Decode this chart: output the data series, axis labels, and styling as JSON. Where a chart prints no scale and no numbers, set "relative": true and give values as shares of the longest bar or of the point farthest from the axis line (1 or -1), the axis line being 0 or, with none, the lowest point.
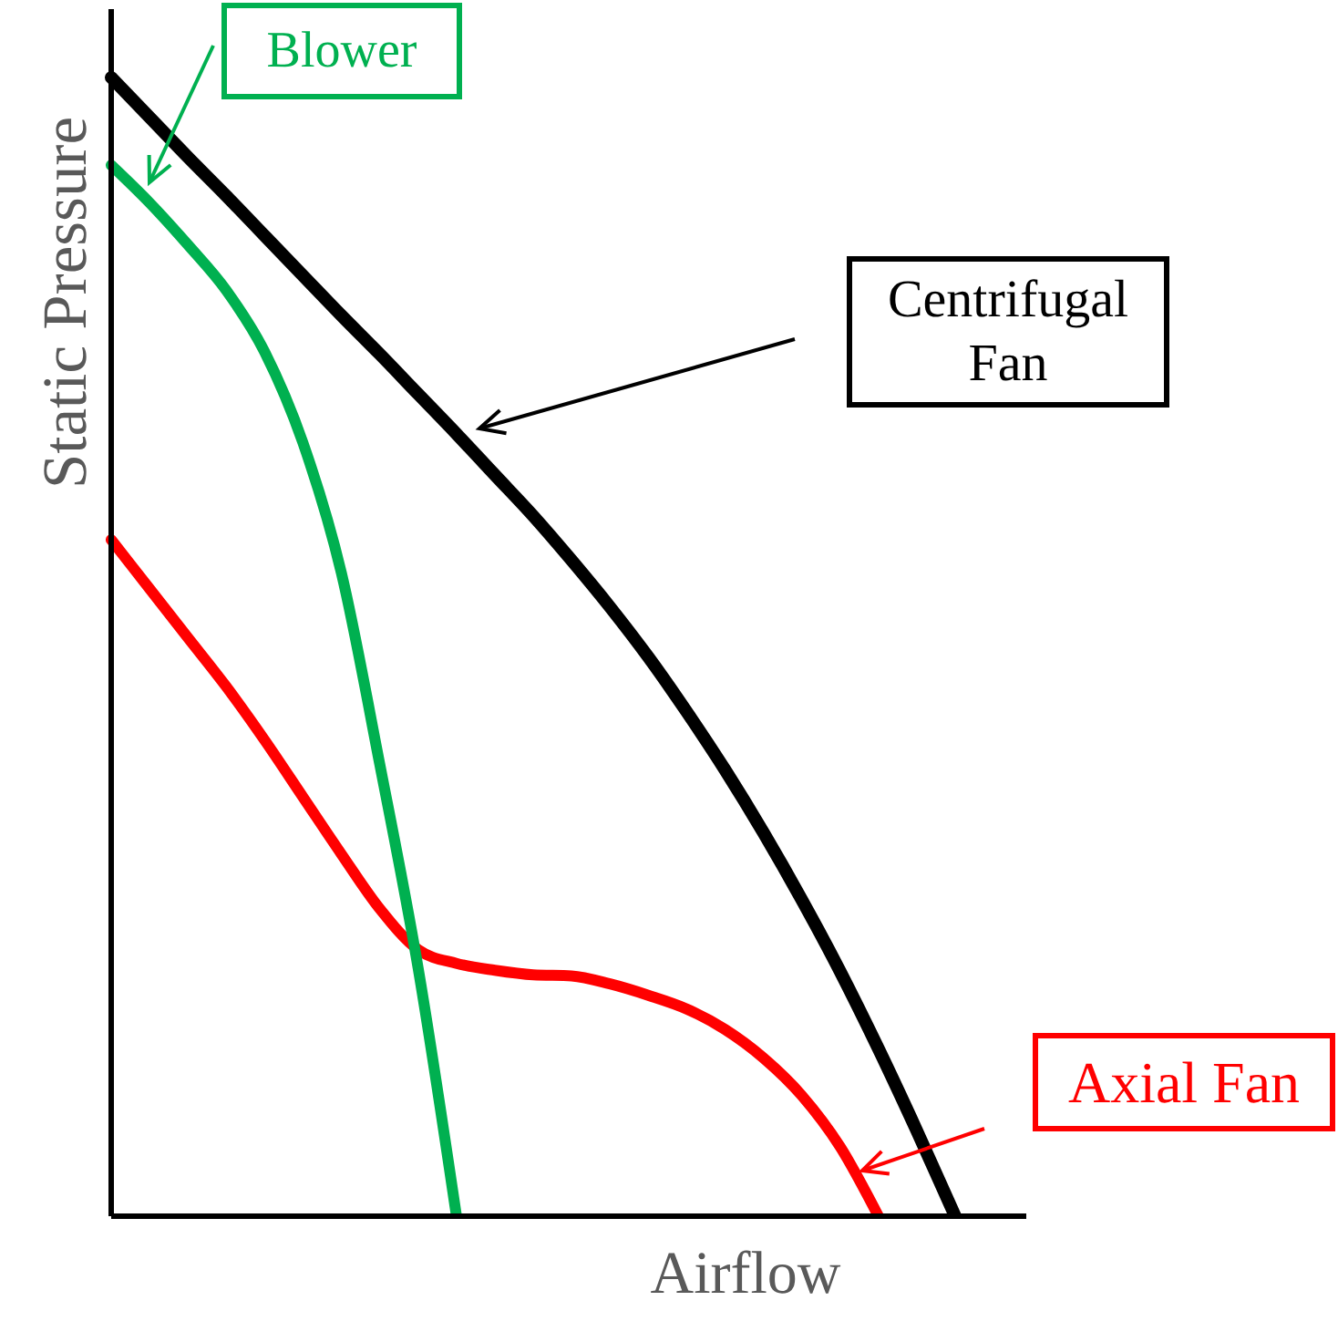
{
  "chart_data": {
    "type": "line",
    "relative": true,
    "xlabel": "Airflow",
    "ylabel": "Static Pressure",
    "categories": [
      null,
      null,
      null,
      null,
      null,
      null,
      null,
      null,
      null,
      null,
      null,
      null,
      null,
      null,
      null,
      null,
      null,
      null,
      null,
      null,
      null,
      null,
      null
    ],
    "series": [
      {
        "name": "Centrifugal Fan",
        "color": "#000000",
        "values": [
          1,
          0.965,
          0.93,
          0.896,
          0.861,
          0.826,
          0.791,
          0.757,
          0.722,
          0.687,
          0.651,
          0.615,
          0.576,
          0.535,
          0.491,
          0.443,
          0.392,
          0.337,
          0.278,
          0.215,
          0.147,
          0.075,
          0
        ]
      },
      {
        "name": "Axial Fan",
        "color": "#ff0000",
        "values": [
          0.594,
          0.551,
          0.508,
          0.465,
          0.418,
          0.368,
          0.318,
          0.27,
          0.234,
          0.222,
          0.216,
          0.212,
          0.211,
          0.204,
          0.194,
          0.182,
          0.164,
          0.139,
          0.106,
          0.061,
          0,
          null,
          null
        ]
      },
      {
        "name": "Blower",
        "color": "#00b050",
        "values": [
          0.923,
          0.89,
          0.853,
          0.813,
          0.759,
          0.679,
          0.565,
          0.397,
          0.218,
          0,
          null,
          null,
          null,
          null,
          null,
          null,
          null,
          null,
          null,
          null,
          null,
          null,
          null
        ]
      }
    ]
  }
}
